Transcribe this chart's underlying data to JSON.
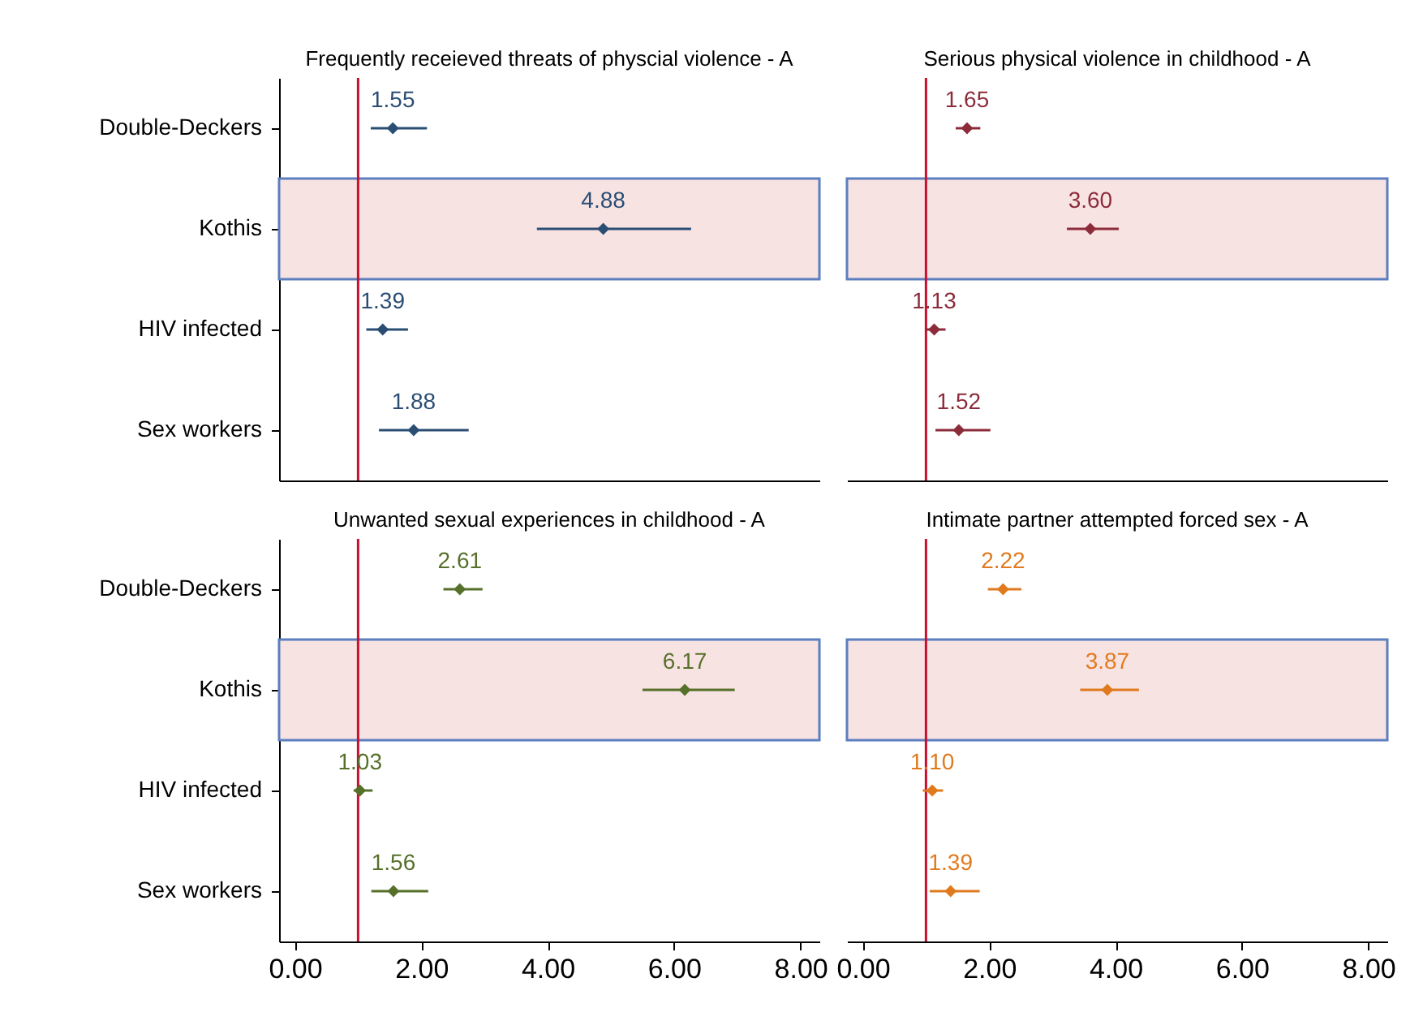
{
  "chart_data": [
    {
      "type": "scatter",
      "orientation": "horizontal",
      "title": "Frequently receieved threats of physcial violence - A",
      "categories": [
        "Double-Deckers",
        "Kothis",
        "HIV infected",
        "Sex workers"
      ],
      "values": [
        1.55,
        4.88,
        1.39,
        1.88
      ],
      "errors": [
        [
          1.2,
          2.09
        ],
        [
          3.83,
          6.27
        ],
        [
          1.13,
          1.79
        ],
        [
          1.33,
          2.75
        ]
      ],
      "value_labels": [
        "1.55",
        "4.88",
        "1.39",
        "1.88"
      ],
      "color": "#2a4d74",
      "marker": "diamond",
      "xlim": [
        -0.25,
        8.3
      ],
      "ref_lines": [
        {
          "axis": "x",
          "value": 1,
          "color": "#c8102e"
        }
      ],
      "bands": [
        {
          "axis": "y",
          "from": "Kothis",
          "to": "Kothis",
          "color": "#f8e3e3"
        }
      ],
      "tick_labels": "y"
    },
    {
      "type": "scatter",
      "orientation": "horizontal",
      "title": "Serious physical violence in childhood - A",
      "categories": [
        "Double-Deckers",
        "Kothis",
        "HIV infected",
        "Sex workers"
      ],
      "values": [
        1.65,
        3.6,
        1.13,
        1.52
      ],
      "errors": [
        [
          1.47,
          1.86
        ],
        [
          3.23,
          4.05
        ],
        [
          1.0,
          1.31
        ],
        [
          1.15,
          2.02
        ]
      ],
      "value_labels": [
        "1.65",
        "3.60",
        "1.13",
        "1.52"
      ],
      "color": "#8c2b3a",
      "marker": "diamond",
      "xlim": [
        -0.25,
        8.3
      ],
      "ref_lines": [
        {
          "axis": "x",
          "value": 1,
          "color": "#c8102e"
        }
      ],
      "bands": [
        {
          "axis": "y",
          "from": "Kothis",
          "to": "Kothis",
          "color": "#f8e3e3"
        }
      ],
      "tick_labels": false
    },
    {
      "type": "scatter",
      "orientation": "horizontal",
      "title": "Unwanted sexual experiences in childhood - A",
      "categories": [
        "Double-Deckers",
        "Kothis",
        "HIV infected",
        "Sex workers"
      ],
      "values": [
        2.61,
        6.17,
        1.03,
        1.56
      ],
      "errors": [
        [
          2.35,
          2.97
        ],
        [
          5.5,
          6.96
        ],
        [
          0.93,
          1.23
        ],
        [
          1.21,
          2.11
        ]
      ],
      "value_labels": [
        "2.61",
        "6.17",
        "1.03",
        "1.56"
      ],
      "color": "#56702a",
      "marker": "diamond",
      "xlim": [
        -0.25,
        8.3
      ],
      "xticks": [
        {
          "value": 0,
          "label": "0.00"
        },
        {
          "value": 2,
          "label": "2.00"
        },
        {
          "value": 4,
          "label": "4.00"
        },
        {
          "value": 6,
          "label": "6.00"
        },
        {
          "value": 8,
          "label": "8.00"
        }
      ],
      "ref_lines": [
        {
          "axis": "x",
          "value": 1,
          "color": "#c8102e"
        }
      ],
      "bands": [
        {
          "axis": "y",
          "from": "Kothis",
          "to": "Kothis",
          "color": "#f8e3e3"
        }
      ]
    },
    {
      "type": "scatter",
      "orientation": "horizontal",
      "title": "Intimate partner attempted forced sex - A",
      "categories": [
        "Double-Deckers",
        "Kothis",
        "HIV infected",
        "Sex workers"
      ],
      "values": [
        2.22,
        3.87,
        1.1,
        1.39
      ],
      "errors": [
        [
          1.98,
          2.51
        ],
        [
          3.44,
          4.37
        ],
        [
          0.95,
          1.27
        ],
        [
          1.06,
          1.85
        ]
      ],
      "value_labels": [
        "2.22",
        "3.87",
        "1.10",
        "1.39"
      ],
      "color": "#e07a1f",
      "marker": "diamond",
      "xlim": [
        -0.25,
        8.3
      ],
      "xticks": [
        {
          "value": 0,
          "label": "0.00"
        },
        {
          "value": 2,
          "label": "2.00"
        },
        {
          "value": 4,
          "label": "4.00"
        },
        {
          "value": 6,
          "label": "6.00"
        },
        {
          "value": 8,
          "label": "8.00"
        }
      ],
      "ref_lines": [
        {
          "axis": "x",
          "value": 1,
          "color": "#c8102e"
        }
      ],
      "bands": [
        {
          "axis": "y",
          "from": "Kothis",
          "to": "Kothis",
          "color": "#f8e3e3"
        }
      ],
      "tick_labels": "x"
    }
  ]
}
